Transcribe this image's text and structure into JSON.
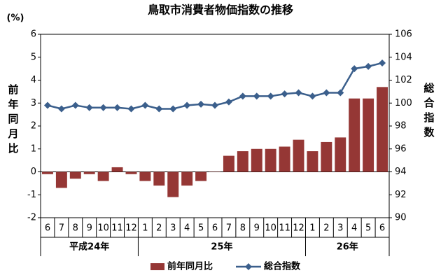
{
  "chart_data": {
    "type": "bar_line",
    "title": "鳥取市消費者物価指数の推移",
    "y_unit": "(%)",
    "y_label": "前年同月比",
    "y2_label": "総合指数",
    "groups": [
      {
        "label": "平成24年",
        "categories": [
          "6",
          "7",
          "8",
          "9",
          "10",
          "11",
          "12"
        ]
      },
      {
        "label": "25年",
        "categories": [
          "1",
          "2",
          "3",
          "4",
          "5",
          "6",
          "7",
          "8",
          "9",
          "10",
          "11",
          "12"
        ]
      },
      {
        "label": "26年",
        "categories": [
          "1",
          "2",
          "3",
          "4",
          "5",
          "6"
        ]
      }
    ],
    "series": [
      {
        "name": "前年同月比",
        "type": "bar",
        "color": "#953735",
        "values": [
          -0.1,
          -0.7,
          -0.3,
          -0.1,
          -0.4,
          0.2,
          -0.1,
          -0.4,
          -0.6,
          -1.1,
          -0.6,
          -0.4,
          0.0,
          0.7,
          0.9,
          1.0,
          1.0,
          1.1,
          1.4,
          0.9,
          1.3,
          1.5,
          3.2,
          3.2,
          3.7
        ]
      },
      {
        "name": "総合指数",
        "type": "line",
        "axis": "y2",
        "color": "#3b5f8c",
        "values": [
          99.8,
          99.5,
          99.8,
          99.6,
          99.6,
          99.6,
          99.5,
          99.8,
          99.5,
          99.5,
          99.8,
          99.9,
          99.8,
          100.1,
          100.6,
          100.6,
          100.6,
          100.8,
          100.9,
          100.6,
          100.9,
          100.9,
          103.0,
          103.2,
          103.5
        ]
      }
    ],
    "ylim": [
      -2,
      6
    ],
    "yticks": [
      -2,
      -1,
      0,
      1,
      2,
      3,
      4,
      5,
      6
    ],
    "y2lim": [
      90,
      106
    ],
    "y2ticks": [
      90,
      92,
      94,
      96,
      98,
      100,
      102,
      104,
      106
    ]
  }
}
